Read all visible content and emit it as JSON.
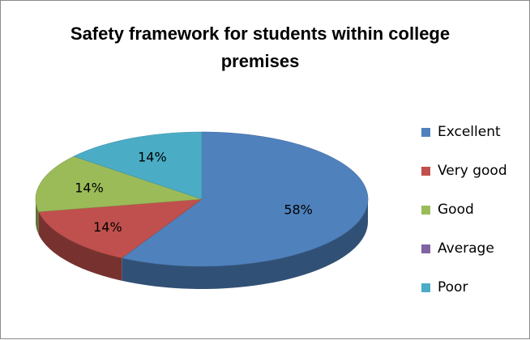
{
  "chart_data": {
    "type": "pie",
    "title": "Safety framework for students within college premises",
    "title_lines": [
      "Safety framework for students within college",
      "premises"
    ],
    "style": "3d",
    "legend_position": "right",
    "categories": [
      "Excellent",
      "Very good",
      "Good",
      "Average",
      "Poor"
    ],
    "values": [
      58,
      14,
      14,
      0,
      14
    ],
    "data_labels": [
      "58%",
      "14%",
      "14%",
      "",
      "14%"
    ],
    "colors": [
      "#4F81BD",
      "#C0504D",
      "#9BBB59",
      "#8064A2",
      "#4BACC6"
    ]
  }
}
